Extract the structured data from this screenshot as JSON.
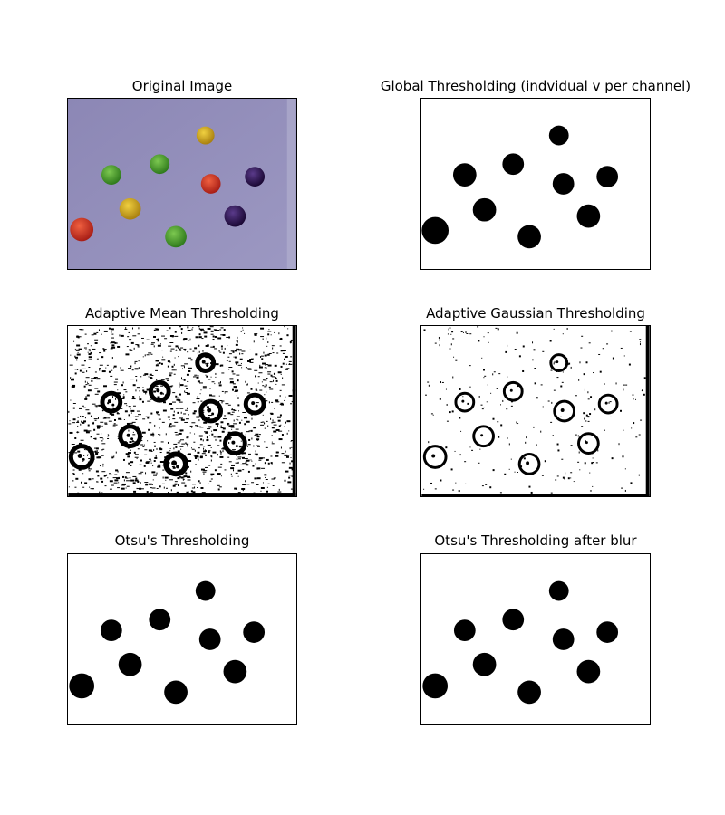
{
  "figure": {
    "panels": [
      {
        "id": "original",
        "title": "Original Image"
      },
      {
        "id": "global",
        "title": "Global Thresholding (indvidual v per channel)"
      },
      {
        "id": "adaptive-mean",
        "title": "Adaptive Mean Thresholding"
      },
      {
        "id": "adaptive-gaussian",
        "title": "Adaptive Gaussian Thresholding"
      },
      {
        "id": "otsu",
        "title": "Otsu's Thresholding"
      },
      {
        "id": "otsu-blur",
        "title": "Otsu's Thresholding after blur"
      }
    ],
    "colors": {
      "surface": "#8f8ab6",
      "yellow_ball": "#c9a419",
      "green_ball": "#4a9a2c",
      "red_ball": "#cc3322",
      "purple_ball": "#2e1452",
      "mask_fg": "#000000",
      "mask_bg": "#ffffff"
    }
  }
}
